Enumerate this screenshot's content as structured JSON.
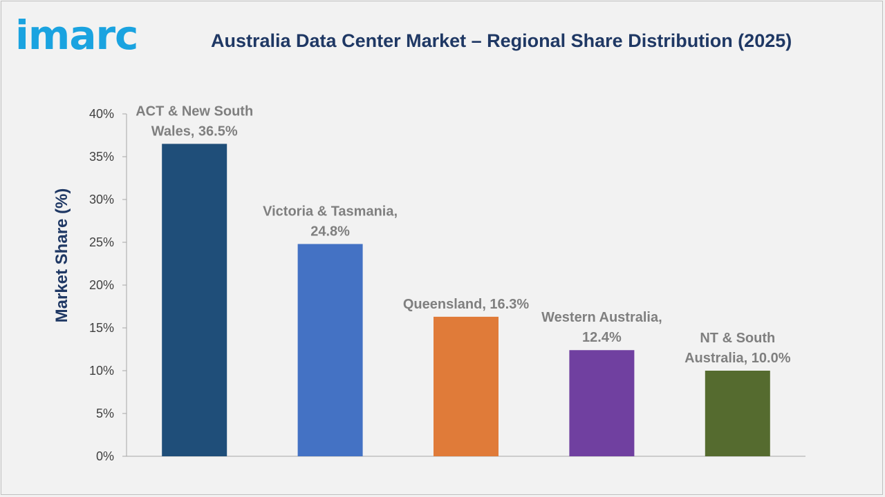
{
  "brand": {
    "logo_text": "imarc"
  },
  "chart_data": {
    "type": "bar",
    "title": "Australia Data Center Market – Regional Share Distribution (2025)",
    "xlabel": "",
    "ylabel": "Market Share (%)",
    "ylim": [
      0,
      40
    ],
    "yticks": [
      0,
      5,
      10,
      15,
      20,
      25,
      30,
      35,
      40
    ],
    "ytick_labels": [
      "0%",
      "5%",
      "10%",
      "15%",
      "20%",
      "25%",
      "30%",
      "35%",
      "40%"
    ],
    "grid": false,
    "legend": "none",
    "categories": [
      "ACT & New South Wales",
      "Victoria & Tasmania",
      "Queensland",
      "Western Australia",
      "NT & South Australia"
    ],
    "values": [
      36.5,
      24.8,
      16.3,
      12.4,
      10.0
    ],
    "colors": [
      "#1f4e79",
      "#4472c4",
      "#e07b39",
      "#7040a0",
      "#556b2f"
    ],
    "data_labels": [
      [
        "ACT & New South",
        "Wales, 36.5%"
      ],
      [
        "Victoria & Tasmania,",
        "24.8%"
      ],
      [
        "Queensland, 16.3%"
      ],
      [
        "Western Australia,",
        "12.4%"
      ],
      [
        "NT & South",
        "Australia, 10.0%"
      ]
    ]
  }
}
